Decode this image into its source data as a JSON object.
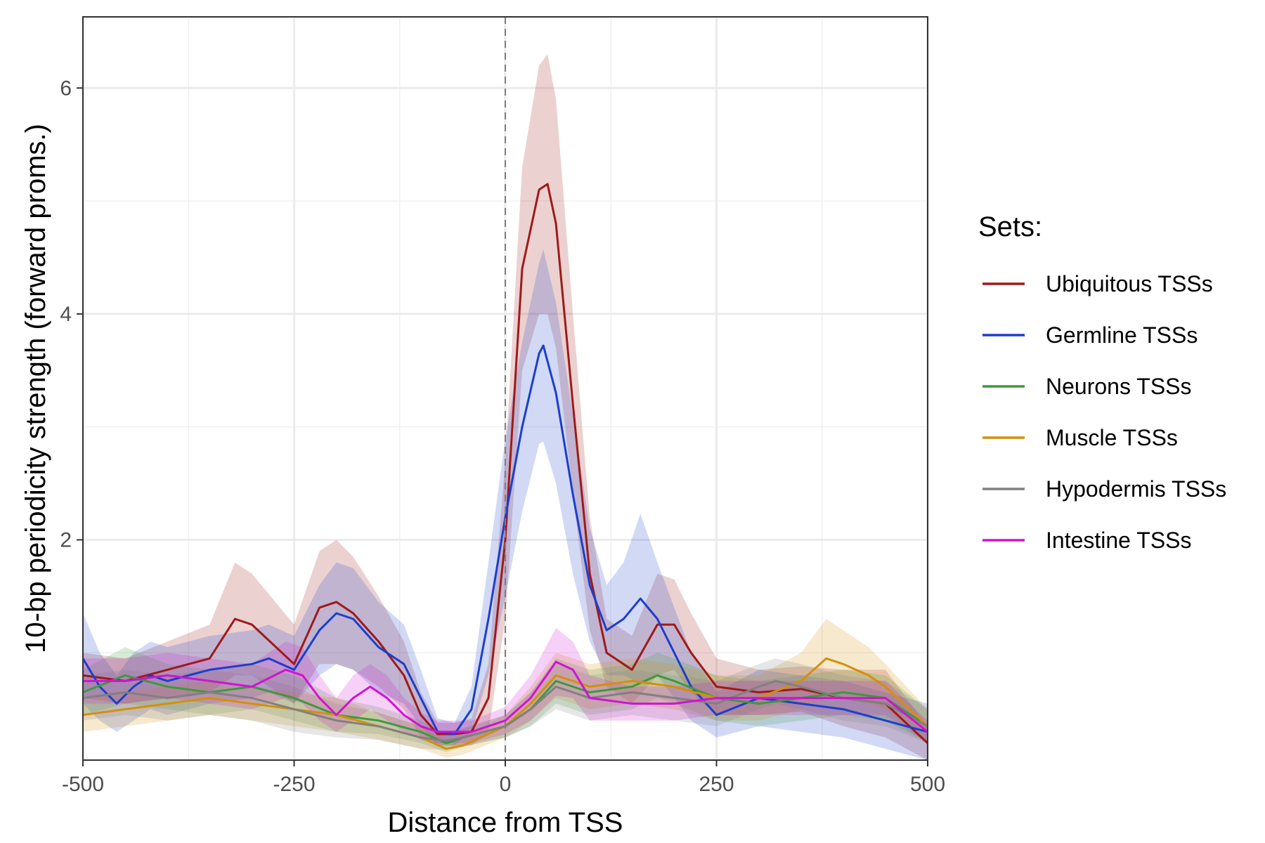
{
  "chart_data": {
    "type": "line",
    "xlabel": "Distance from TSS",
    "ylabel": "10-bp periodicity strength (forward proms.)",
    "xlim": [
      -500,
      500
    ],
    "ylim": [
      0.05,
      6.63
    ],
    "x_ticks": [
      -500,
      -250,
      0,
      250,
      500
    ],
    "x_tick_labels": [
      "-500",
      "-250",
      "0",
      "250",
      "500"
    ],
    "y_ticks": [
      2,
      4,
      6
    ],
    "y_tick_labels": [
      "2",
      "4",
      "6"
    ],
    "grid": true,
    "vline_x": 0,
    "legend": {
      "title": "Sets:",
      "position": "right"
    },
    "series": [
      {
        "name": "Ubiquitous TSSs",
        "color": "#9E1A1A",
        "x": [
          -500,
          -450,
          -400,
          -350,
          -320,
          -300,
          -250,
          -220,
          -200,
          -180,
          -150,
          -120,
          -100,
          -80,
          -60,
          -40,
          -20,
          0,
          20,
          40,
          50,
          60,
          80,
          100,
          120,
          150,
          180,
          200,
          220,
          250,
          300,
          350,
          400,
          450,
          500
        ],
        "y": [
          0.8,
          0.75,
          0.85,
          0.95,
          1.3,
          1.25,
          0.9,
          1.4,
          1.45,
          1.35,
          1.1,
          0.8,
          0.45,
          0.28,
          0.28,
          0.3,
          0.6,
          2.0,
          4.4,
          5.1,
          5.15,
          4.8,
          3.2,
          1.7,
          1.0,
          0.85,
          1.25,
          1.25,
          1.0,
          0.7,
          0.65,
          0.68,
          0.6,
          0.55,
          0.2
        ],
        "band": [
          0.2,
          0.2,
          0.25,
          0.3,
          0.5,
          0.45,
          0.35,
          0.5,
          0.55,
          0.5,
          0.4,
          0.3,
          0.2,
          0.1,
          0.1,
          0.12,
          0.3,
          0.7,
          0.9,
          1.1,
          1.15,
          1.1,
          0.8,
          0.5,
          0.3,
          0.3,
          0.45,
          0.4,
          0.35,
          0.25,
          0.2,
          0.2,
          0.25,
          0.3,
          0.15
        ]
      },
      {
        "name": "Germline TSSs",
        "color": "#1B3FCC",
        "x": [
          -500,
          -480,
          -460,
          -440,
          -420,
          -400,
          -350,
          -300,
          -280,
          -250,
          -220,
          -200,
          -180,
          -150,
          -120,
          -100,
          -80,
          -60,
          -40,
          -20,
          0,
          20,
          40,
          45,
          60,
          80,
          100,
          120,
          140,
          160,
          180,
          200,
          220,
          250,
          300,
          350,
          400,
          450,
          500
        ],
        "y": [
          0.95,
          0.7,
          0.55,
          0.7,
          0.8,
          0.75,
          0.85,
          0.9,
          0.95,
          0.85,
          1.2,
          1.35,
          1.3,
          1.05,
          0.9,
          0.6,
          0.3,
          0.28,
          0.5,
          1.3,
          2.2,
          3.0,
          3.65,
          3.72,
          3.3,
          2.4,
          1.6,
          1.2,
          1.3,
          1.48,
          1.3,
          1.0,
          0.7,
          0.45,
          0.6,
          0.55,
          0.5,
          0.4,
          0.3
        ],
        "band": [
          0.4,
          0.3,
          0.25,
          0.3,
          0.3,
          0.3,
          0.3,
          0.3,
          0.3,
          0.3,
          0.4,
          0.45,
          0.45,
          0.4,
          0.35,
          0.25,
          0.12,
          0.1,
          0.2,
          0.5,
          0.7,
          0.75,
          0.8,
          0.85,
          0.8,
          0.7,
          0.5,
          0.4,
          0.5,
          0.75,
          0.5,
          0.4,
          0.3,
          0.2,
          0.25,
          0.25,
          0.25,
          0.25,
          0.25
        ]
      },
      {
        "name": "Neurons TSSs",
        "color": "#3D9A3D",
        "x": [
          -500,
          -450,
          -400,
          -350,
          -300,
          -250,
          -200,
          -150,
          -100,
          -70,
          -50,
          0,
          30,
          60,
          80,
          100,
          150,
          180,
          200,
          250,
          300,
          350,
          400,
          450,
          500
        ],
        "y": [
          0.65,
          0.8,
          0.7,
          0.65,
          0.7,
          0.6,
          0.45,
          0.4,
          0.3,
          0.2,
          0.25,
          0.35,
          0.5,
          0.75,
          0.7,
          0.65,
          0.7,
          0.8,
          0.75,
          0.6,
          0.55,
          0.6,
          0.65,
          0.6,
          0.35
        ],
        "band": [
          0.2,
          0.25,
          0.2,
          0.2,
          0.2,
          0.2,
          0.15,
          0.12,
          0.1,
          0.08,
          0.08,
          0.1,
          0.15,
          0.2,
          0.2,
          0.2,
          0.2,
          0.2,
          0.2,
          0.2,
          0.2,
          0.2,
          0.2,
          0.2,
          0.15
        ]
      },
      {
        "name": "Muscle TSSs",
        "color": "#D4900A",
        "x": [
          -500,
          -450,
          -400,
          -350,
          -300,
          -250,
          -200,
          -150,
          -100,
          -70,
          -50,
          0,
          30,
          60,
          80,
          100,
          150,
          200,
          250,
          300,
          350,
          380,
          400,
          430,
          450,
          500
        ],
        "y": [
          0.45,
          0.5,
          0.55,
          0.6,
          0.55,
          0.5,
          0.45,
          0.35,
          0.25,
          0.15,
          0.18,
          0.35,
          0.55,
          0.8,
          0.75,
          0.7,
          0.75,
          0.7,
          0.6,
          0.6,
          0.75,
          0.95,
          0.9,
          0.8,
          0.7,
          0.35
        ],
        "band": [
          0.15,
          0.15,
          0.15,
          0.15,
          0.15,
          0.15,
          0.15,
          0.12,
          0.1,
          0.08,
          0.08,
          0.1,
          0.15,
          0.2,
          0.2,
          0.2,
          0.2,
          0.2,
          0.2,
          0.2,
          0.25,
          0.35,
          0.3,
          0.25,
          0.2,
          0.15
        ]
      },
      {
        "name": "Hypodermis TSSs",
        "color": "#808080",
        "x": [
          -500,
          -450,
          -400,
          -350,
          -300,
          -250,
          -200,
          -150,
          -100,
          -70,
          -50,
          0,
          30,
          60,
          80,
          100,
          150,
          200,
          250,
          300,
          320,
          350,
          400,
          450,
          500
        ],
        "y": [
          0.6,
          0.65,
          0.6,
          0.65,
          0.6,
          0.5,
          0.4,
          0.35,
          0.25,
          0.22,
          0.25,
          0.35,
          0.5,
          0.7,
          0.65,
          0.6,
          0.65,
          0.6,
          0.55,
          0.7,
          0.75,
          0.7,
          0.6,
          0.55,
          0.35
        ],
        "band": [
          0.2,
          0.2,
          0.2,
          0.2,
          0.2,
          0.2,
          0.15,
          0.12,
          0.1,
          0.08,
          0.08,
          0.1,
          0.15,
          0.2,
          0.2,
          0.2,
          0.2,
          0.2,
          0.2,
          0.2,
          0.2,
          0.2,
          0.2,
          0.2,
          0.15
        ]
      },
      {
        "name": "Intestine TSSs",
        "color": "#D014D0",
        "x": [
          -500,
          -450,
          -400,
          -350,
          -300,
          -260,
          -240,
          -220,
          -200,
          -180,
          -160,
          -140,
          -120,
          -100,
          -80,
          -60,
          -40,
          0,
          30,
          60,
          80,
          100,
          150,
          200,
          250,
          300,
          350,
          400,
          450,
          500
        ],
        "y": [
          0.75,
          0.75,
          0.8,
          0.75,
          0.7,
          0.85,
          0.8,
          0.6,
          0.45,
          0.6,
          0.7,
          0.6,
          0.45,
          0.35,
          0.3,
          0.3,
          0.3,
          0.4,
          0.6,
          0.92,
          0.85,
          0.6,
          0.55,
          0.55,
          0.6,
          0.6,
          0.6,
          0.6,
          0.6,
          0.3
        ],
        "band": [
          0.2,
          0.2,
          0.2,
          0.2,
          0.2,
          0.25,
          0.25,
          0.2,
          0.15,
          0.2,
          0.2,
          0.2,
          0.15,
          0.12,
          0.1,
          0.1,
          0.1,
          0.12,
          0.2,
          0.3,
          0.25,
          0.2,
          0.15,
          0.15,
          0.15,
          0.15,
          0.15,
          0.15,
          0.15,
          0.1
        ]
      }
    ]
  }
}
